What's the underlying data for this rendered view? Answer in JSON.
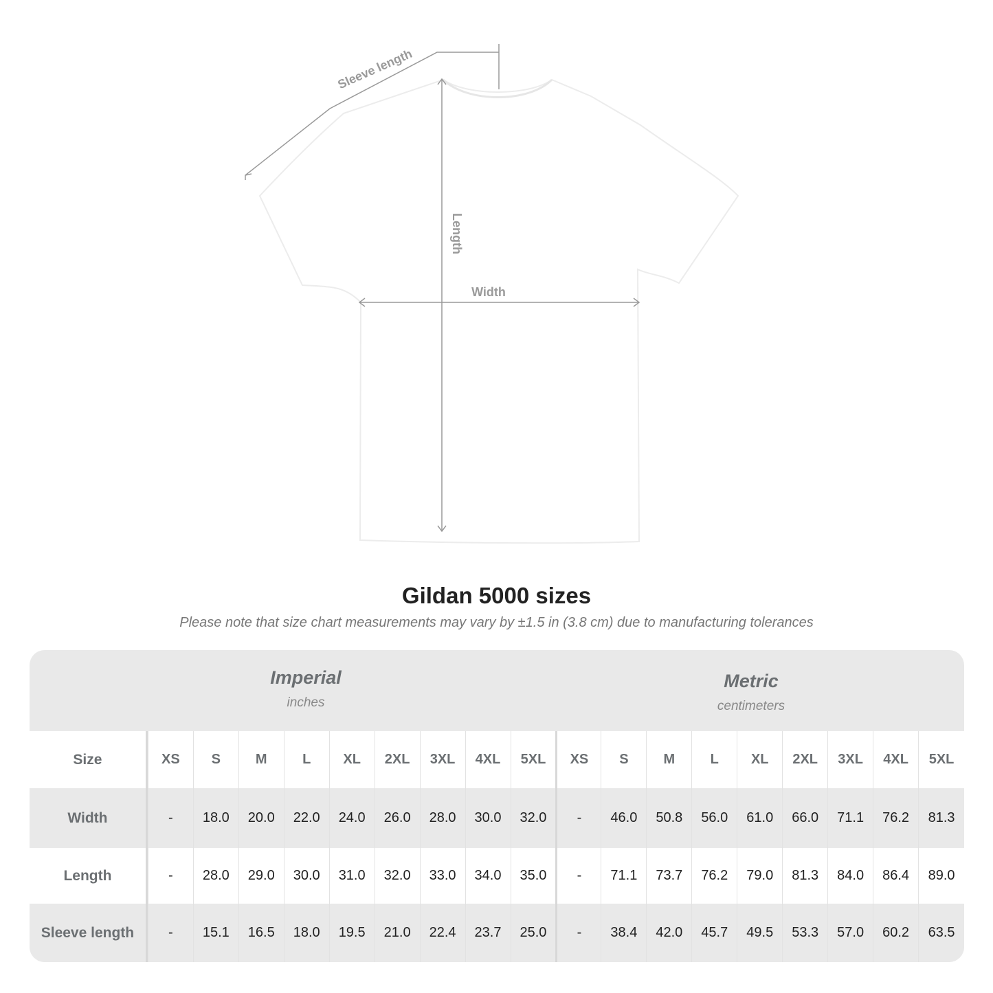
{
  "diagram": {
    "labels": {
      "sleeve": "Sleeve length",
      "length": "Length",
      "width": "Width"
    }
  },
  "title": "Gildan 5000 sizes",
  "subtitle": "Please note that size chart measurements may vary by ±1.5 in (3.8 cm) due to manufacturing tolerances",
  "table": {
    "imperial": {
      "name": "Imperial",
      "unit": "inches"
    },
    "metric": {
      "name": "Metric",
      "unit": "centimeters"
    },
    "size_label": "Size",
    "sizes": [
      "XS",
      "S",
      "M",
      "L",
      "XL",
      "2XL",
      "3XL",
      "4XL",
      "5XL"
    ],
    "rows": [
      {
        "label": "Width",
        "imperial": [
          "-",
          "18.0",
          "20.0",
          "22.0",
          "24.0",
          "26.0",
          "28.0",
          "30.0",
          "32.0"
        ],
        "metric": [
          "-",
          "46.0",
          "50.8",
          "56.0",
          "61.0",
          "66.0",
          "71.1",
          "76.2",
          "81.3"
        ]
      },
      {
        "label": "Length",
        "imperial": [
          "-",
          "28.0",
          "29.0",
          "30.0",
          "31.0",
          "32.0",
          "33.0",
          "34.0",
          "35.0"
        ],
        "metric": [
          "-",
          "71.1",
          "73.7",
          "76.2",
          "79.0",
          "81.3",
          "84.0",
          "86.4",
          "89.0"
        ]
      },
      {
        "label": "Sleeve length",
        "imperial": [
          "-",
          "15.1",
          "16.5",
          "18.0",
          "19.5",
          "21.0",
          "22.4",
          "23.7",
          "25.0"
        ],
        "metric": [
          "-",
          "38.4",
          "42.0",
          "45.7",
          "49.5",
          "53.3",
          "57.0",
          "60.2",
          "63.5"
        ]
      }
    ]
  },
  "colors": {
    "header_gray": "#e9e9e9",
    "label_text": "#6b6f72",
    "guide_lines": "#999999"
  }
}
